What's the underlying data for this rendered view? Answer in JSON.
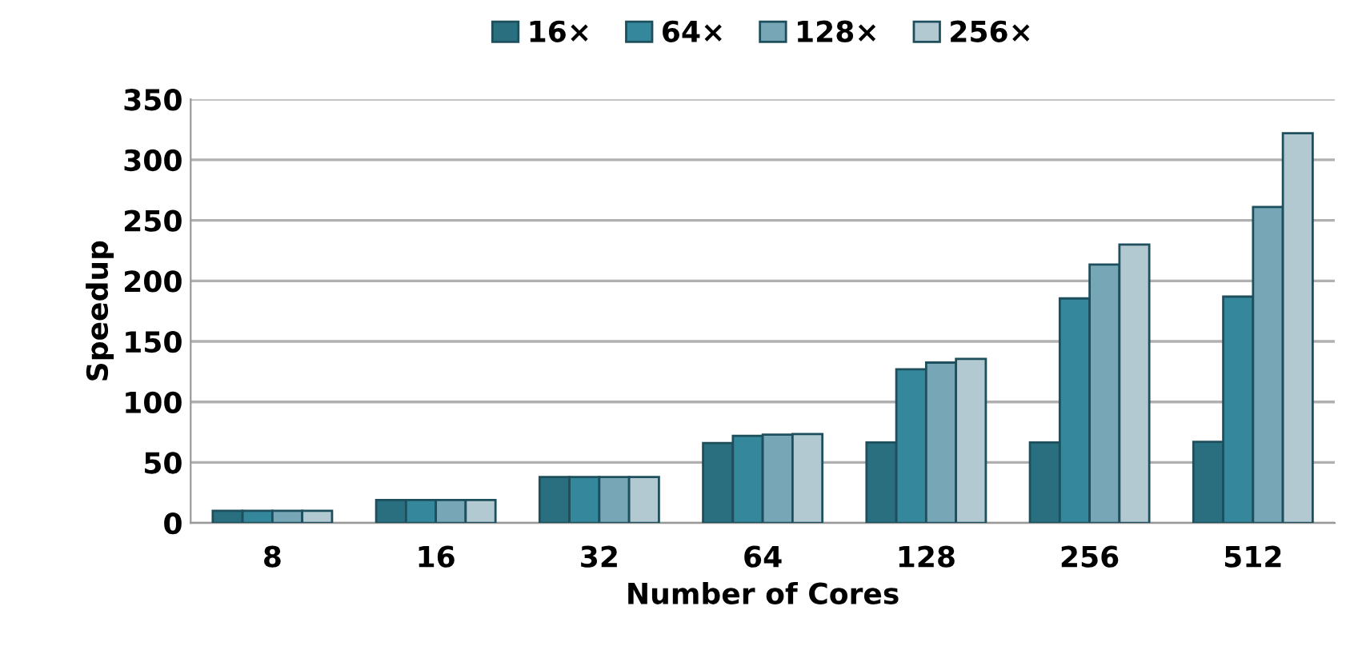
{
  "chart_data": {
    "type": "bar",
    "xlabel": "Number of Cores",
    "ylabel": "Speedup",
    "categories": [
      "8",
      "16",
      "32",
      "64",
      "128",
      "256",
      "512"
    ],
    "series": [
      {
        "name": "16×",
        "color": "#2a6f7f",
        "values": [
          10,
          19,
          38,
          66,
          66.5,
          66.5,
          67
        ]
      },
      {
        "name": "64×",
        "color": "#35879c",
        "values": [
          10,
          19,
          38,
          72,
          127,
          185.5,
          187
        ]
      },
      {
        "name": "128×",
        "color": "#77a7b7",
        "values": [
          10,
          19,
          38,
          73,
          132.5,
          213.5,
          261
        ]
      },
      {
        "name": "256×",
        "color": "#b2c9d2",
        "values": [
          10,
          19,
          38,
          73.5,
          135.5,
          230,
          322
        ]
      }
    ],
    "ylim": [
      0,
      350
    ],
    "yticks": [
      0,
      50,
      100,
      150,
      200,
      250,
      300,
      350
    ],
    "grid": "y",
    "legend": "top"
  }
}
